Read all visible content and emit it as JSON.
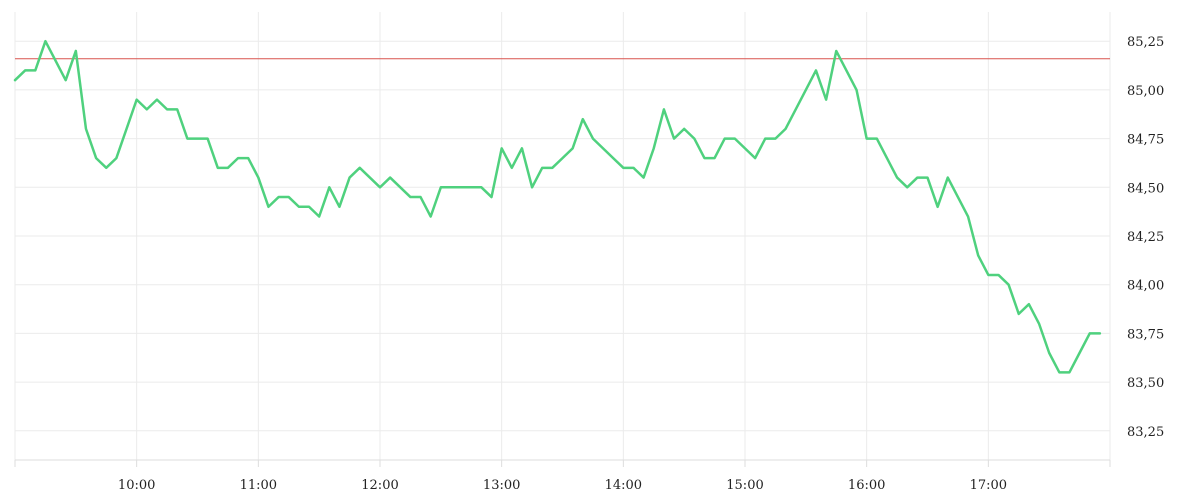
{
  "chart_data": {
    "type": "line",
    "title": "",
    "xlabel": "",
    "ylabel": "",
    "y_axis_position": "right",
    "grid": true,
    "legend": "none",
    "xlim": [
      "09:00",
      "18:00"
    ],
    "ylim": [
      83.1,
      85.4
    ],
    "x_ticks": [
      "10:00",
      "11:00",
      "12:00",
      "13:00",
      "14:00",
      "15:00",
      "16:00",
      "17:00"
    ],
    "y_ticks": [
      "83,25",
      "83,50",
      "83,75",
      "84,00",
      "84,25",
      "84,50",
      "84,75",
      "85,00",
      "85,25"
    ],
    "reference_line": {
      "value": 85.16,
      "color": "#d9534f"
    },
    "series": [
      {
        "color": "#4fd17e",
        "x": [
          "09:00",
          "09:05",
          "09:10",
          "09:15",
          "09:20",
          "09:25",
          "09:30",
          "09:35",
          "09:40",
          "09:45",
          "09:50",
          "09:55",
          "10:00",
          "10:05",
          "10:10",
          "10:15",
          "10:20",
          "10:25",
          "10:30",
          "10:35",
          "10:40",
          "10:45",
          "10:50",
          "10:55",
          "11:00",
          "11:05",
          "11:10",
          "11:15",
          "11:20",
          "11:25",
          "11:30",
          "11:35",
          "11:40",
          "11:45",
          "11:50",
          "11:55",
          "12:00",
          "12:05",
          "12:10",
          "12:15",
          "12:20",
          "12:25",
          "12:30",
          "12:35",
          "12:40",
          "12:45",
          "12:50",
          "12:55",
          "13:00",
          "13:05",
          "13:10",
          "13:15",
          "13:20",
          "13:25",
          "13:30",
          "13:35",
          "13:40",
          "13:45",
          "13:50",
          "13:55",
          "14:00",
          "14:05",
          "14:10",
          "14:15",
          "14:20",
          "14:25",
          "14:30",
          "14:35",
          "14:40",
          "14:45",
          "14:50",
          "14:55",
          "15:00",
          "15:05",
          "15:10",
          "15:15",
          "15:20",
          "15:25",
          "15:30",
          "15:35",
          "15:40",
          "15:45",
          "15:50",
          "15:55",
          "16:00",
          "16:05",
          "16:10",
          "16:15",
          "16:20",
          "16:25",
          "16:30",
          "16:35",
          "16:40",
          "16:45",
          "16:50",
          "16:55",
          "17:00",
          "17:05",
          "17:10",
          "17:15",
          "17:20",
          "17:25",
          "17:30",
          "17:35",
          "17:40",
          "17:45",
          "17:50",
          "17:55"
        ],
        "values": [
          85.05,
          85.1,
          85.1,
          85.25,
          85.15,
          85.05,
          85.2,
          84.8,
          84.65,
          84.6,
          84.65,
          84.8,
          84.95,
          84.9,
          84.95,
          84.9,
          84.9,
          84.75,
          84.75,
          84.75,
          84.6,
          84.6,
          84.65,
          84.65,
          84.55,
          84.4,
          84.45,
          84.45,
          84.4,
          84.4,
          84.35,
          84.5,
          84.4,
          84.55,
          84.6,
          84.55,
          84.5,
          84.55,
          84.5,
          84.45,
          84.45,
          84.35,
          84.5,
          84.5,
          84.5,
          84.5,
          84.5,
          84.45,
          84.7,
          84.6,
          84.7,
          84.5,
          84.6,
          84.6,
          84.65,
          84.7,
          84.85,
          84.75,
          84.7,
          84.65,
          84.6,
          84.6,
          84.55,
          84.7,
          84.9,
          84.75,
          84.8,
          84.75,
          84.65,
          84.65,
          84.75,
          84.75,
          84.7,
          84.65,
          84.75,
          84.75,
          84.8,
          84.9,
          85.0,
          85.1,
          84.95,
          85.2,
          85.1,
          85.0,
          84.75,
          84.75,
          84.65,
          84.55,
          84.5,
          84.55,
          84.55,
          84.4,
          84.55,
          84.45,
          84.35,
          84.15,
          84.05,
          84.05,
          84.0,
          83.85,
          83.9,
          83.8,
          83.65,
          83.55,
          83.55,
          83.65,
          83.75,
          83.75
        ]
      }
    ]
  }
}
